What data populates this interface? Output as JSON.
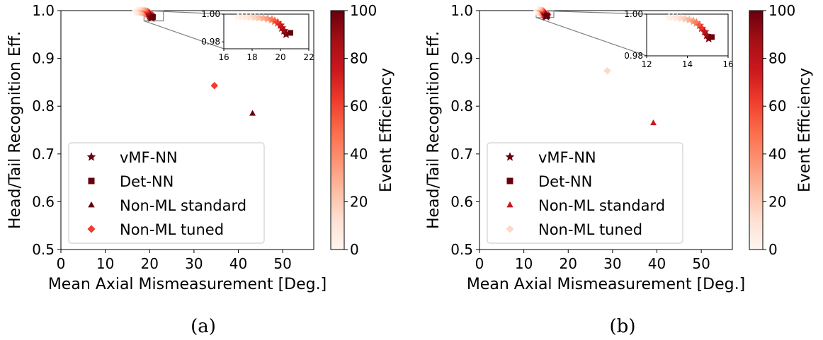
{
  "chart_data": [
    {
      "type": "scatter",
      "caption": "(a)",
      "xlabel": "Mean Axial Mismeasurement [Deg.]",
      "ylabel": "Head/Tail Recognition Eff.",
      "xlim": [
        0,
        57
      ],
      "ylim": [
        0.5,
        1.0
      ],
      "xticks": [
        "0",
        "10",
        "20",
        "30",
        "40",
        "50"
      ],
      "yticks": [
        "0.5",
        "0.6",
        "0.7",
        "0.8",
        "0.9",
        "1.0"
      ],
      "colorbar": {
        "label": "Event Efficiency",
        "range": [
          0,
          100
        ],
        "ticks": [
          "0",
          "20",
          "40",
          "60",
          "80",
          "100"
        ]
      },
      "legend": {
        "position": "lower-left",
        "entries": [
          "vMF-NN",
          "Det-NN",
          "Non-ML standard",
          "Non-ML tuned"
        ]
      },
      "series": [
        {
          "name": "vMF-NN",
          "marker": "star",
          "points": [
            {
              "x": 17.0,
              "y": 0.9982,
              "c": 2
            },
            {
              "x": 17.3,
              "y": 0.9981,
              "c": 5
            },
            {
              "x": 17.6,
              "y": 0.998,
              "c": 8
            },
            {
              "x": 17.9,
              "y": 0.9979,
              "c": 12
            },
            {
              "x": 18.2,
              "y": 0.9977,
              "c": 17
            },
            {
              "x": 18.5,
              "y": 0.9975,
              "c": 22
            },
            {
              "x": 18.8,
              "y": 0.9972,
              "c": 28
            },
            {
              "x": 19.1,
              "y": 0.9967,
              "c": 35
            },
            {
              "x": 19.4,
              "y": 0.996,
              "c": 43
            },
            {
              "x": 19.6,
              "y": 0.995,
              "c": 52
            },
            {
              "x": 19.8,
              "y": 0.9938,
              "c": 62
            },
            {
              "x": 20.0,
              "y": 0.992,
              "c": 72
            },
            {
              "x": 20.1,
              "y": 0.99,
              "c": 80
            },
            {
              "x": 20.25,
              "y": 0.988,
              "c": 88
            },
            {
              "x": 20.4,
              "y": 0.9855,
              "c": 95
            }
          ]
        },
        {
          "name": "Det-NN",
          "marker": "square",
          "points": [
            {
              "x": 20.7,
              "y": 0.9865,
              "c": 100
            }
          ]
        },
        {
          "name": "Non-ML standard",
          "marker": "triangle",
          "points": [
            {
              "x": 43.2,
              "y": 0.785,
              "c": 100
            }
          ]
        },
        {
          "name": "Non-ML tuned",
          "marker": "diamond",
          "points": [
            {
              "x": 34.6,
              "y": 0.843,
              "c": 62
            }
          ]
        }
      ],
      "inset": {
        "xlim": [
          16,
          22
        ],
        "ylim": [
          0.975,
          1.0
        ],
        "xticks": [
          "16",
          "18",
          "20",
          "22"
        ],
        "yticks": [
          "0.98",
          "1.00"
        ],
        "zoom_box": {
          "x": [
            16.5,
            21.2
          ],
          "y": [
            0.977,
            1.0
          ]
        }
      }
    },
    {
      "type": "scatter",
      "caption": "(b)",
      "xlabel": "Mean Axial Mismeasurement [Deg.]",
      "ylabel": "Head/Tail Recognition Eff.",
      "xlim": [
        0,
        57
      ],
      "ylim": [
        0.5,
        1.0
      ],
      "xticks": [
        "0",
        "10",
        "20",
        "30",
        "40",
        "50"
      ],
      "yticks": [
        "0.5",
        "0.6",
        "0.7",
        "0.8",
        "0.9",
        "1.0"
      ],
      "colorbar": {
        "label": "Event Efficiency",
        "range": [
          0,
          100
        ],
        "ticks": [
          "0",
          "20",
          "40",
          "60",
          "80",
          "100"
        ]
      },
      "legend": {
        "position": "lower-left",
        "entries": [
          "vMF-NN",
          "Det-NN",
          "Non-ML standard",
          "Non-ML tuned"
        ]
      },
      "series": [
        {
          "name": "vMF-NN",
          "marker": "star",
          "points": [
            {
              "x": 13.1,
              "y": 0.9985,
              "c": 2
            },
            {
              "x": 13.3,
              "y": 0.9984,
              "c": 5
            },
            {
              "x": 13.5,
              "y": 0.9982,
              "c": 9
            },
            {
              "x": 13.7,
              "y": 0.998,
              "c": 14
            },
            {
              "x": 13.9,
              "y": 0.9977,
              "c": 20
            },
            {
              "x": 14.1,
              "y": 0.9973,
              "c": 27
            },
            {
              "x": 14.3,
              "y": 0.9966,
              "c": 35
            },
            {
              "x": 14.45,
              "y": 0.9958,
              "c": 44
            },
            {
              "x": 14.6,
              "y": 0.9946,
              "c": 55
            },
            {
              "x": 14.7,
              "y": 0.9932,
              "c": 66
            },
            {
              "x": 14.85,
              "y": 0.9915,
              "c": 78
            },
            {
              "x": 14.95,
              "y": 0.9898,
              "c": 88
            },
            {
              "x": 15.05,
              "y": 0.9883,
              "c": 96
            }
          ]
        },
        {
          "name": "Det-NN",
          "marker": "square",
          "points": [
            {
              "x": 15.2,
              "y": 0.989,
              "c": 100
            }
          ]
        },
        {
          "name": "Non-ML standard",
          "marker": "triangle",
          "points": [
            {
              "x": 39.2,
              "y": 0.765,
              "c": 75
            }
          ]
        },
        {
          "name": "Non-ML tuned",
          "marker": "diamond",
          "points": [
            {
              "x": 28.8,
              "y": 0.874,
              "c": 15
            }
          ]
        }
      ],
      "inset": {
        "xlim": [
          12,
          16
        ],
        "ylim": [
          0.98,
          1.0
        ],
        "xticks": [
          "12",
          "14",
          "16"
        ],
        "yticks": [
          "0.98",
          "1.00"
        ],
        "zoom_box": {
          "x": [
            11.5,
            15.8
          ],
          "y": [
            0.984,
            1.0
          ]
        }
      }
    }
  ],
  "colors": {
    "cmap_low": "#fff5f0",
    "cmap_high": "#67000d",
    "legend_marker": "#67000d",
    "axis": "#000000",
    "inset_link": "#808080"
  }
}
